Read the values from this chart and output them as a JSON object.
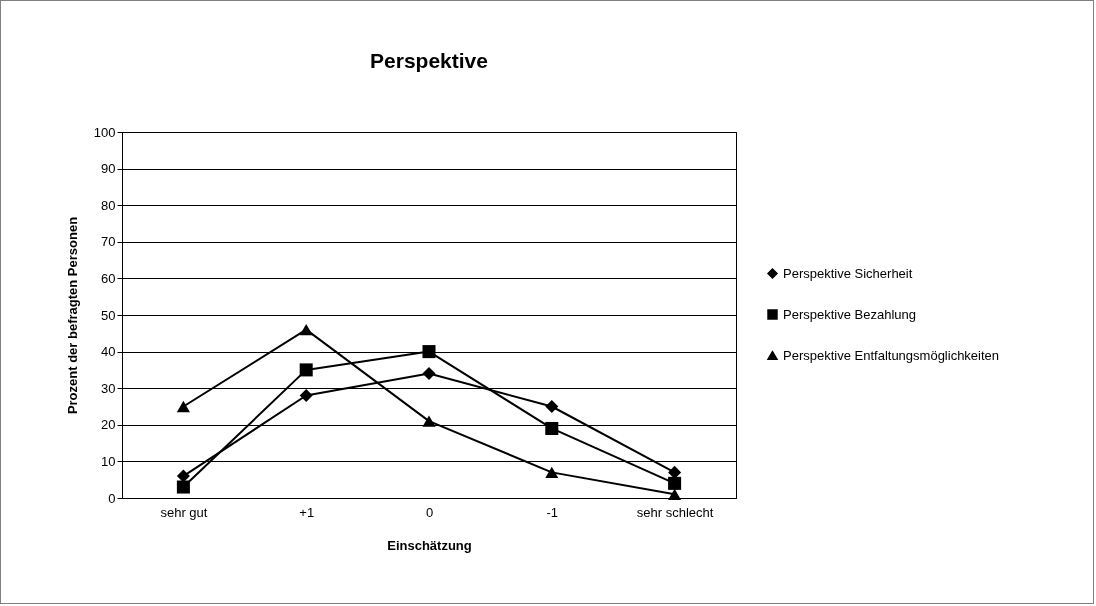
{
  "chart_data": {
    "type": "line",
    "title": "Perspektive",
    "xlabel": "Einschätzung",
    "ylabel": "Prozent der befragten Personen",
    "categories": [
      "sehr gut",
      "+1",
      "0",
      "-1",
      "sehr schlecht"
    ],
    "ylim": [
      0,
      100
    ],
    "yticks": [
      0,
      10,
      20,
      30,
      40,
      50,
      60,
      70,
      80,
      90,
      100
    ],
    "grid": "y",
    "legend": "right",
    "line_style": "solid",
    "series": [
      {
        "name": "Perspektive Sicherheit",
        "color": "#000000",
        "marker": "diamond",
        "values": [
          6,
          28,
          34,
          25,
          7
        ]
      },
      {
        "name": "Perspektive Bezahlung",
        "color": "#000000",
        "marker": "square",
        "values": [
          3,
          35,
          40,
          19,
          4
        ]
      },
      {
        "name": "Perspektive Entfaltungsmöglichkeiten",
        "color": "#000000",
        "marker": "triangle",
        "values": [
          25,
          46,
          21,
          7,
          1
        ]
      }
    ]
  }
}
